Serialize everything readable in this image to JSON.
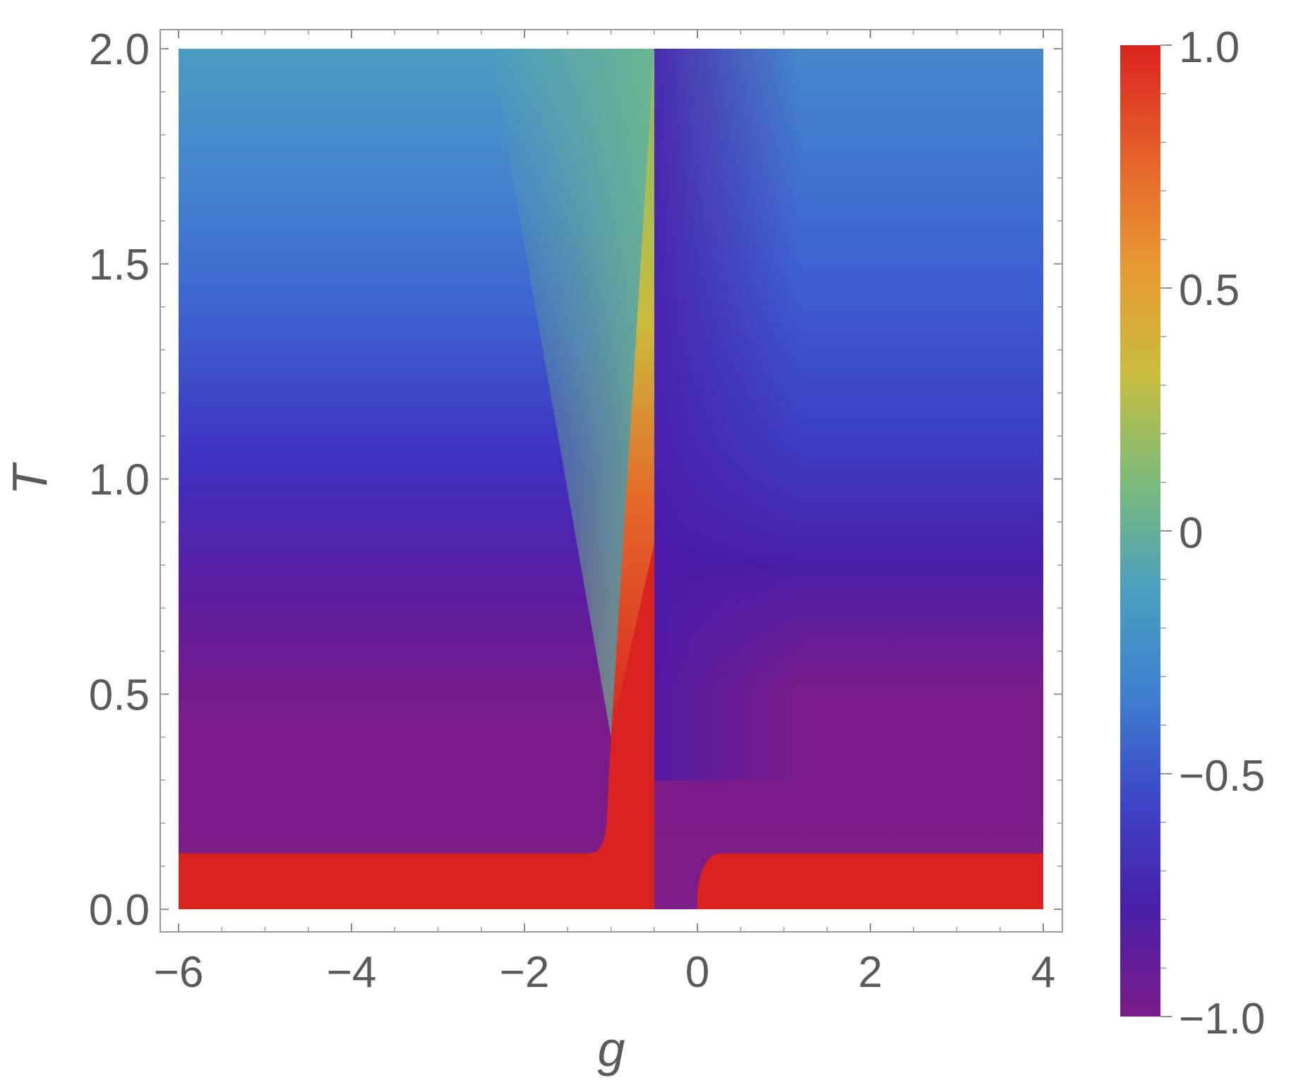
{
  "chart_data": {
    "type": "heatmap",
    "title": "",
    "xlabel": "g",
    "ylabel": "T",
    "xlim": [
      -6,
      4
    ],
    "ylim": [
      0,
      2
    ],
    "x_ticks": [
      -6,
      -4,
      -2,
      0,
      2,
      4
    ],
    "x_tick_labels": [
      "−6",
      "−4",
      "−2",
      "0",
      "2",
      "4"
    ],
    "y_ticks": [
      0.0,
      0.5,
      1.0,
      1.5,
      2.0
    ],
    "y_tick_labels": [
      "0.0",
      "0.5",
      "1.0",
      "1.5",
      "2.0"
    ],
    "colorbar": {
      "range": [
        -1.0,
        1.0
      ],
      "ticks": [
        -1.0,
        -0.5,
        0,
        0.5,
        1.0
      ],
      "tick_labels": [
        "−1.0",
        "−0.5",
        "0",
        "0.5",
        "1.0"
      ],
      "colormap": [
        "#7b1c87",
        "#4a1ea8",
        "#3c44c8",
        "#3e7fd0",
        "#4aa0be",
        "#7bbb7a",
        "#c8bd3e",
        "#e89a33",
        "#e6642a",
        "#da2320"
      ]
    },
    "regions": {
      "left_panel_g": [
        -6,
        -0.5
      ],
      "right_panel_g": [
        -0.5,
        4
      ],
      "low_T_band_T": [
        0,
        0.13
      ],
      "left_red_wedge": {
        "T_start": 0.4,
        "g_at_T_start": -1.0,
        "g_at_T_top": -0.5
      },
      "right_gap_g": [
        -0.5,
        0.0
      ]
    }
  }
}
